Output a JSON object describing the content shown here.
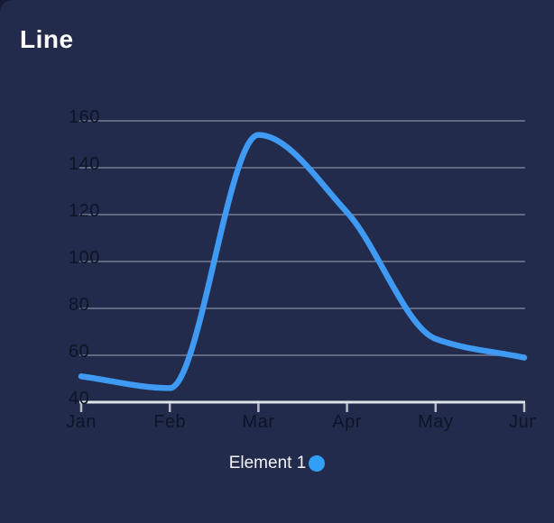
{
  "window": {
    "title": "Line"
  },
  "colors": {
    "page_behind": "#161d33",
    "card_background": "#222b4b",
    "line": "#3e9af3",
    "legend_dot": "#319ff5",
    "gridline": "rgba(222,229,240,0.45)",
    "axis_baseline": "#dfe3ea",
    "tick": "#b6bdc9",
    "axis_label": "#0d1428",
    "legend_text": "#f2f4f8",
    "title_text": "#ffffff"
  },
  "legend": {
    "label": "Element 1",
    "marker": "circle-icon"
  },
  "chart_data": {
    "type": "line",
    "title": "Line",
    "x": [
      "Jan",
      "Feb",
      "Mar",
      "Apr",
      "May",
      "Jun"
    ],
    "series": [
      {
        "name": "Element 1",
        "values": [
          51,
          46,
          154,
          121,
          67,
          59
        ]
      }
    ],
    "xlabel": "",
    "ylabel": "",
    "ylim": [
      40,
      160
    ],
    "yticks": [
      40,
      60,
      80,
      100,
      120,
      140,
      160
    ],
    "grid": true,
    "smooth": true,
    "legend_position": "bottom"
  }
}
